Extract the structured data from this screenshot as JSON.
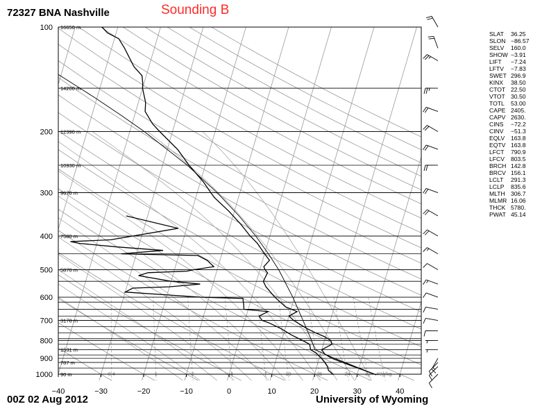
{
  "header": {
    "station": "72327 BNA Nashville",
    "sounding": "Sounding B",
    "date": "00Z 02 Aug 2012",
    "credit": "University of Wyoming"
  },
  "colors": {
    "sounding_label": "#ff2a2a",
    "grid_dry": "#999999",
    "grid_moist": "#aaaaaa",
    "profile": "#000000"
  },
  "chart_data": {
    "type": "line",
    "title": "Sounding B",
    "subtitle": "72327 BNA Nashville",
    "xlabel": "",
    "ylabel": "",
    "xlim": [
      -40,
      45
    ],
    "ylim": [
      1000,
      100
    ],
    "y_scale": "log",
    "x_ticks": [
      -40,
      -30,
      -20,
      -10,
      0,
      10,
      20,
      30,
      40
    ],
    "y_ticks": [
      100,
      200,
      300,
      400,
      500,
      600,
      700,
      800,
      900,
      1000
    ],
    "mandatory_levels": [
      {
        "p": 100,
        "label": "16650 m"
      },
      {
        "p": 150,
        "label": "14200 m"
      },
      {
        "p": 200,
        "label": "12390 m"
      },
      {
        "p": 250,
        "label": "10930 m"
      },
      {
        "p": 300,
        "label": "9670 m"
      },
      {
        "p": 400,
        "label": "7580 m"
      },
      {
        "p": 500,
        "label": "5870 m"
      },
      {
        "p": 700,
        "label": "3178 m"
      },
      {
        "p": 850,
        "label": "1531 m"
      },
      {
        "p": 925,
        "label": "787 m"
      },
      {
        "p": 1000,
        "label": "90 m"
      }
    ],
    "sig_levels": [
      450,
      540,
      620,
      650,
      680,
      730,
      760,
      790,
      820,
      880,
      960
    ],
    "mixing_ratio_labels": [
      "0.4",
      "1",
      "2",
      "4",
      "7",
      "10",
      "16",
      "24",
      "32",
      "40g/kg"
    ],
    "series": [
      {
        "values": [
          [
            1004,
            34.5
          ],
          [
            975,
            31.4
          ],
          [
            950,
            28.6
          ],
          [
            925,
            25.8
          ],
          [
            900,
            23.0
          ],
          [
            875,
            21.0
          ],
          [
            850,
            20.0
          ],
          [
            820,
            22.0
          ],
          [
            800,
            21.5
          ],
          [
            780,
            19.8
          ],
          [
            760,
            17.4
          ],
          [
            740,
            15.2
          ],
          [
            720,
            13.3
          ],
          [
            700,
            11.4
          ],
          [
            680,
            10.0
          ],
          [
            660,
            11.6
          ],
          [
            640,
            8.6
          ],
          [
            600,
            5.4
          ],
          [
            560,
            2.6
          ],
          [
            540,
            1.6
          ],
          [
            510,
            2.0
          ],
          [
            500,
            1.2
          ],
          [
            490,
            0.7
          ],
          [
            470,
            1.6
          ],
          [
            450,
            0.0
          ],
          [
            420,
            -2.4
          ],
          [
            400,
            -4.6
          ],
          [
            370,
            -7.6
          ],
          [
            340,
            -11.2
          ],
          [
            310,
            -15.6
          ],
          [
            300,
            -16.8
          ],
          [
            280,
            -19.2
          ],
          [
            250,
            -23.8
          ],
          [
            225,
            -27.6
          ],
          [
            200,
            -33.0
          ],
          [
            190,
            -35.2
          ],
          [
            175,
            -37.8
          ],
          [
            165,
            -38.3
          ],
          [
            150,
            -40.0
          ],
          [
            145,
            -40.3
          ],
          [
            138,
            -41.0
          ],
          [
            130,
            -43.5
          ],
          [
            115,
            -47.0
          ],
          [
            108,
            -49.0
          ],
          [
            104,
            -52.0
          ],
          [
            100,
            -53.7
          ]
        ]
      },
      {
        "values": [
          [
            1004,
            24.5
          ],
          [
            975,
            23.0
          ],
          [
            950,
            22.5
          ],
          [
            925,
            21.6
          ],
          [
            900,
            20.5
          ],
          [
            870,
            19.0
          ],
          [
            850,
            17.4
          ],
          [
            820,
            16.8
          ],
          [
            800,
            14.9
          ],
          [
            770,
            11.8
          ],
          [
            740,
            9.1
          ],
          [
            710,
            5.6
          ],
          [
            700,
            4.0
          ],
          [
            680,
            3.0
          ],
          [
            660,
            4.8
          ],
          [
            650,
            -1.0
          ],
          [
            630,
            -1.4
          ],
          [
            605,
            -2.0
          ],
          [
            600,
            -11.8
          ],
          [
            580,
            -30.0
          ],
          [
            565,
            -28.5
          ],
          [
            560,
            -20.0
          ],
          [
            550,
            -13.0
          ],
          [
            540,
            -20.0
          ],
          [
            520,
            -28.0
          ],
          [
            510,
            -26.0
          ],
          [
            505,
            -17.0
          ],
          [
            500,
            -15.5
          ],
          [
            490,
            -11.0
          ],
          [
            470,
            -13.0
          ],
          [
            455,
            -15.5
          ],
          [
            450,
            -33.6
          ],
          [
            440,
            -24.0
          ],
          [
            430,
            -35.0
          ],
          [
            420,
            -44.0
          ],
          [
            415,
            -46.3
          ],
          [
            410,
            -37.0
          ],
          [
            380,
            -22.0
          ],
          [
            350,
            -35.0
          ]
        ]
      },
      {
        "values": [
          [
            1004,
            34.5
          ],
          [
            950,
            29.0
          ],
          [
            900,
            23.6
          ],
          [
            850,
            18.4
          ],
          [
            800,
            17.0
          ],
          [
            700,
            13.6
          ],
          [
            600,
            9.6
          ],
          [
            500,
            4.4
          ],
          [
            450,
            0.9
          ],
          [
            400,
            -3.3
          ],
          [
            350,
            -8.6
          ],
          [
            300,
            -15.3
          ],
          [
            250,
            -24.2
          ],
          [
            200,
            -36.6
          ],
          [
            180,
            -43.0
          ],
          [
            160,
            -50.4
          ],
          [
            140,
            -59.2
          ],
          [
            120,
            -69.6
          ],
          [
            100,
            -82.0
          ]
        ]
      }
    ],
    "wind_barbs": [
      {
        "p": 1000,
        "dir": 225,
        "spd": 10
      },
      {
        "p": 950,
        "dir": 225,
        "spd": 10
      },
      {
        "p": 925,
        "dir": 225,
        "spd": 10
      },
      {
        "p": 900,
        "dir": 210,
        "spd": 15
      },
      {
        "p": 850,
        "dir": 270,
        "spd": 5
      },
      {
        "p": 800,
        "dir": 270,
        "spd": 5
      },
      {
        "p": 750,
        "dir": 270,
        "spd": 10
      },
      {
        "p": 700,
        "dir": 280,
        "spd": 10
      },
      {
        "p": 650,
        "dir": 280,
        "spd": 10
      },
      {
        "p": 600,
        "dir": 290,
        "spd": 10
      },
      {
        "p": 550,
        "dir": 290,
        "spd": 15
      },
      {
        "p": 500,
        "dir": 300,
        "spd": 10
      },
      {
        "p": 450,
        "dir": 300,
        "spd": 15
      },
      {
        "p": 400,
        "dir": 300,
        "spd": 20
      },
      {
        "p": 350,
        "dir": 300,
        "spd": 20
      },
      {
        "p": 300,
        "dir": 290,
        "spd": 20
      },
      {
        "p": 250,
        "dir": 270,
        "spd": 20
      },
      {
        "p": 225,
        "dir": 290,
        "spd": 20
      },
      {
        "p": 200,
        "dir": 300,
        "spd": 20
      },
      {
        "p": 175,
        "dir": 290,
        "spd": 20
      },
      {
        "p": 150,
        "dir": 270,
        "spd": 25
      },
      {
        "p": 125,
        "dir": 300,
        "spd": 25
      },
      {
        "p": 115,
        "dir": 340,
        "spd": 20
      },
      {
        "p": 100,
        "dir": 330,
        "spd": 20
      }
    ],
    "grid": true,
    "legend": "none"
  },
  "indices": [
    {
      "key": "SLAT",
      "value": "36.25"
    },
    {
      "key": "SLON",
      "value": "−86.57"
    },
    {
      "key": "SELV",
      "value": "160.0"
    },
    {
      "key": "SHOW",
      "value": "−3.91"
    },
    {
      "key": "LIFT",
      "value": "−7.24"
    },
    {
      "key": "LFTV",
      "value": "−7.83"
    },
    {
      "key": "SWET",
      "value": "296.9"
    },
    {
      "key": "KINX",
      "value": "38.50"
    },
    {
      "key": "CTOT",
      "value": "22.50"
    },
    {
      "key": "VTOT",
      "value": "30.50"
    },
    {
      "key": "TOTL",
      "value": "53.00"
    },
    {
      "key": "CAPE",
      "value": "2405."
    },
    {
      "key": "CAPV",
      "value": "2630."
    },
    {
      "key": "CINS",
      "value": "−72.2"
    },
    {
      "key": "CINV",
      "value": "−51.3"
    },
    {
      "key": "EQLV",
      "value": "163.8"
    },
    {
      "key": "EQTV",
      "value": "163.8"
    },
    {
      "key": "LFCT",
      "value": "790.9"
    },
    {
      "key": "LFCV",
      "value": "803.5"
    },
    {
      "key": "BRCH",
      "value": "142.8"
    },
    {
      "key": "BRCV",
      "value": "156.1"
    },
    {
      "key": "LCLT",
      "value": "291.3"
    },
    {
      "key": "LCLP",
      "value": "835.6"
    },
    {
      "key": "MLTH",
      "value": "306.7"
    },
    {
      "key": "MLMR",
      "value": "16.06"
    },
    {
      "key": "THCK",
      "value": "5780."
    },
    {
      "key": "PWAT",
      "value": "45.14"
    }
  ]
}
